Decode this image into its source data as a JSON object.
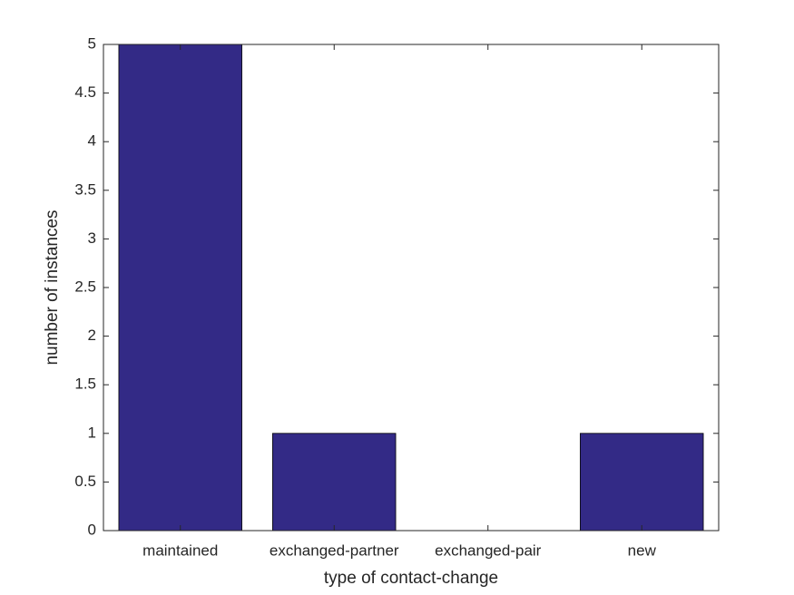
{
  "chart_data": {
    "type": "bar",
    "xlabel": "type of contact-change",
    "ylabel": "number of instances",
    "categories": [
      "maintained",
      "exchanged-partner",
      "exchanged-pair",
      "new"
    ],
    "values": [
      5,
      1,
      0,
      1
    ],
    "color": "#332a86",
    "ylim": [
      0,
      5
    ],
    "yticks": [
      0,
      0.5,
      1,
      1.5,
      2,
      2.5,
      3,
      3.5,
      4,
      4.5,
      5
    ],
    "grid": false
  }
}
